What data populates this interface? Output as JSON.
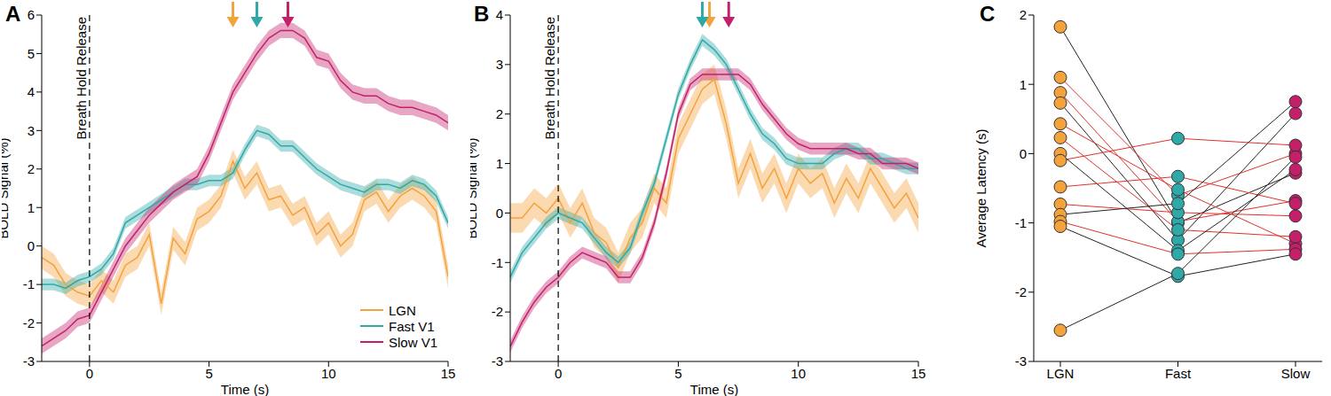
{
  "chart_data": [
    {
      "type": "line",
      "title": "A",
      "x_label": "Time (s)",
      "y_label": "BOLD Signal (%)",
      "xlim": [
        -2,
        15
      ],
      "xticks": [
        0,
        5,
        10,
        15
      ],
      "ylim": [
        -3,
        6
      ],
      "yticks": [
        -3,
        -2,
        -1,
        0,
        1,
        2,
        3,
        4,
        5,
        6
      ],
      "legend": "lower right",
      "annotations": [
        {
          "text": "Breath Hold Release",
          "x": 0,
          "line_style": "dashed"
        }
      ],
      "x": [
        -2,
        -1.5,
        -1,
        -0.5,
        0,
        0.5,
        1,
        1.5,
        2,
        2.5,
        3,
        3.5,
        4,
        4.5,
        5,
        5.5,
        6,
        6.5,
        7,
        7.5,
        8,
        8.5,
        9,
        9.5,
        10,
        10.5,
        11,
        11.5,
        12,
        12.5,
        13,
        13.5,
        14,
        14.5,
        15
      ],
      "series": [
        {
          "name": "LGN",
          "color": "#f4a23c",
          "error": 0.3,
          "peak": 6.0,
          "values": [
            -0.3,
            -0.5,
            -1.0,
            -1.2,
            -1.3,
            -0.9,
            -1.2,
            -0.5,
            -0.3,
            0.3,
            -1.5,
            0.2,
            -0.2,
            0.7,
            0.9,
            1.3,
            2.2,
            1.5,
            1.9,
            1.2,
            1.3,
            0.8,
            1.0,
            0.3,
            0.6,
            0.0,
            0.3,
            1.2,
            1.4,
            0.9,
            1.3,
            1.5,
            1.3,
            0.9,
            -0.8
          ]
        },
        {
          "name": "Fast V1",
          "color": "#2fa9a8",
          "error": 0.15,
          "peak": 7.0,
          "values": [
            -1.0,
            -1.0,
            -1.1,
            -0.9,
            -0.8,
            -0.6,
            -0.2,
            0.6,
            0.8,
            1.0,
            1.2,
            1.4,
            1.6,
            1.6,
            1.7,
            1.7,
            1.9,
            2.5,
            3.0,
            2.9,
            2.6,
            2.6,
            2.3,
            2.0,
            1.8,
            1.6,
            1.5,
            1.4,
            1.6,
            1.6,
            1.5,
            1.7,
            1.6,
            1.3,
            0.6
          ]
        },
        {
          "name": "Slow V1",
          "color": "#c4206a",
          "error": 0.2,
          "peak": 8.3,
          "values": [
            -2.6,
            -2.4,
            -2.2,
            -1.9,
            -1.8,
            -1.2,
            -0.6,
            0.0,
            0.4,
            0.8,
            1.1,
            1.4,
            1.6,
            1.8,
            2.4,
            3.2,
            4.0,
            4.5,
            5.0,
            5.4,
            5.6,
            5.6,
            5.4,
            4.9,
            4.8,
            4.3,
            4.0,
            3.9,
            3.9,
            3.7,
            3.6,
            3.6,
            3.5,
            3.4,
            3.2
          ]
        }
      ]
    },
    {
      "type": "line",
      "title": "B",
      "x_label": "Time (s)",
      "y_label": "BOLD Signal (%)",
      "xlim": [
        -2,
        15
      ],
      "xticks": [
        0,
        5,
        10,
        15
      ],
      "ylim": [
        -3,
        4
      ],
      "yticks": [
        -3,
        -2,
        -1,
        0,
        1,
        2,
        3,
        4
      ],
      "annotations": [
        {
          "text": "Breath Hold Release",
          "x": 0,
          "line_style": "dashed"
        }
      ],
      "x": [
        -2,
        -1.5,
        -1,
        -0.5,
        0,
        0.5,
        1,
        1.5,
        2,
        2.5,
        3,
        3.5,
        4,
        4.5,
        5,
        5.5,
        6,
        6.5,
        7,
        7.5,
        8,
        8.5,
        9,
        9.5,
        10,
        10.5,
        11,
        11.5,
        12,
        12.5,
        13,
        13.5,
        14,
        14.5,
        15
      ],
      "series": [
        {
          "name": "LGN",
          "color": "#f4a23c",
          "error": 0.3,
          "peak": 6.3,
          "values": [
            -0.1,
            -0.1,
            0.2,
            0.0,
            0.3,
            -0.2,
            0.2,
            -0.4,
            -0.6,
            -1.1,
            -0.5,
            -0.2,
            0.5,
            0.2,
            1.5,
            2.0,
            2.5,
            2.7,
            1.8,
            0.6,
            1.2,
            0.5,
            0.9,
            0.3,
            0.9,
            0.6,
            0.8,
            0.2,
            0.7,
            0.3,
            0.9,
            0.5,
            0.1,
            0.4,
            -0.1
          ]
        },
        {
          "name": "Fast V1",
          "color": "#2fa9a8",
          "error": 0.12,
          "peak": 6.0,
          "values": [
            -1.3,
            -0.8,
            -0.5,
            -0.2,
            0.0,
            -0.1,
            -0.2,
            -0.5,
            -0.8,
            -1.0,
            -0.7,
            0.0,
            0.6,
            1.5,
            2.4,
            3.0,
            3.5,
            3.3,
            3.0,
            2.5,
            2.0,
            1.6,
            1.4,
            1.1,
            1.0,
            1.0,
            1.0,
            1.2,
            1.3,
            1.3,
            1.1,
            1.1,
            1.0,
            0.9,
            0.9
          ]
        },
        {
          "name": "Slow V1",
          "color": "#c4206a",
          "error": 0.12,
          "peak": 7.1,
          "values": [
            -2.7,
            -2.2,
            -1.8,
            -1.5,
            -1.3,
            -1.0,
            -0.8,
            -0.9,
            -1.0,
            -1.3,
            -1.3,
            -0.9,
            -0.2,
            0.8,
            2.0,
            2.6,
            2.8,
            2.8,
            2.8,
            2.8,
            2.6,
            2.2,
            1.9,
            1.6,
            1.4,
            1.3,
            1.3,
            1.3,
            1.3,
            1.2,
            1.2,
            1.0,
            1.0,
            1.0,
            0.9
          ]
        }
      ]
    },
    {
      "type": "line",
      "title": "C",
      "y_label": "Average Latency (s)",
      "categories": [
        "LGN",
        "Fast",
        "Slow"
      ],
      "colors": [
        "#f4a23c",
        "#2fa9a8",
        "#c4206a"
      ],
      "marker": "circle",
      "ylim": [
        -3,
        2
      ],
      "yticks": [
        -3,
        -2,
        -1,
        0,
        1,
        2
      ],
      "series": [
        {
          "color": "#222222",
          "values": [
            1.83,
            -1.0,
            -0.28
          ]
        },
        {
          "color": "#e0302a",
          "values": [
            1.1,
            -0.6,
            0.0
          ]
        },
        {
          "color": "#e0302a",
          "values": [
            0.88,
            -0.98,
            -0.68
          ]
        },
        {
          "color": "#222222",
          "values": [
            0.73,
            -1.25,
            0.58
          ]
        },
        {
          "color": "#e0302a",
          "values": [
            0.43,
            -0.52,
            -1.3
          ]
        },
        {
          "color": "#e0302a",
          "values": [
            0.23,
            -1.1,
            -1.2
          ]
        },
        {
          "color": "#222222",
          "values": [
            0.0,
            -1.4,
            -0.23
          ]
        },
        {
          "color": "#e0302a",
          "values": [
            -0.1,
            0.22,
            0.12
          ]
        },
        {
          "color": "#e0302a",
          "values": [
            -0.48,
            -0.33,
            -0.72
          ]
        },
        {
          "color": "#e0302a",
          "values": [
            -0.73,
            -0.85,
            -0.9
          ]
        },
        {
          "color": "#222222",
          "values": [
            -0.88,
            -0.72,
            0.75
          ]
        },
        {
          "color": "#e0302a",
          "values": [
            -0.98,
            -1.45,
            -1.38
          ]
        },
        {
          "color": "#222222",
          "values": [
            -1.05,
            -1.77,
            -1.45
          ]
        },
        {
          "color": "#222222",
          "values": [
            -2.55,
            -1.73,
            -0.05
          ]
        }
      ]
    }
  ]
}
